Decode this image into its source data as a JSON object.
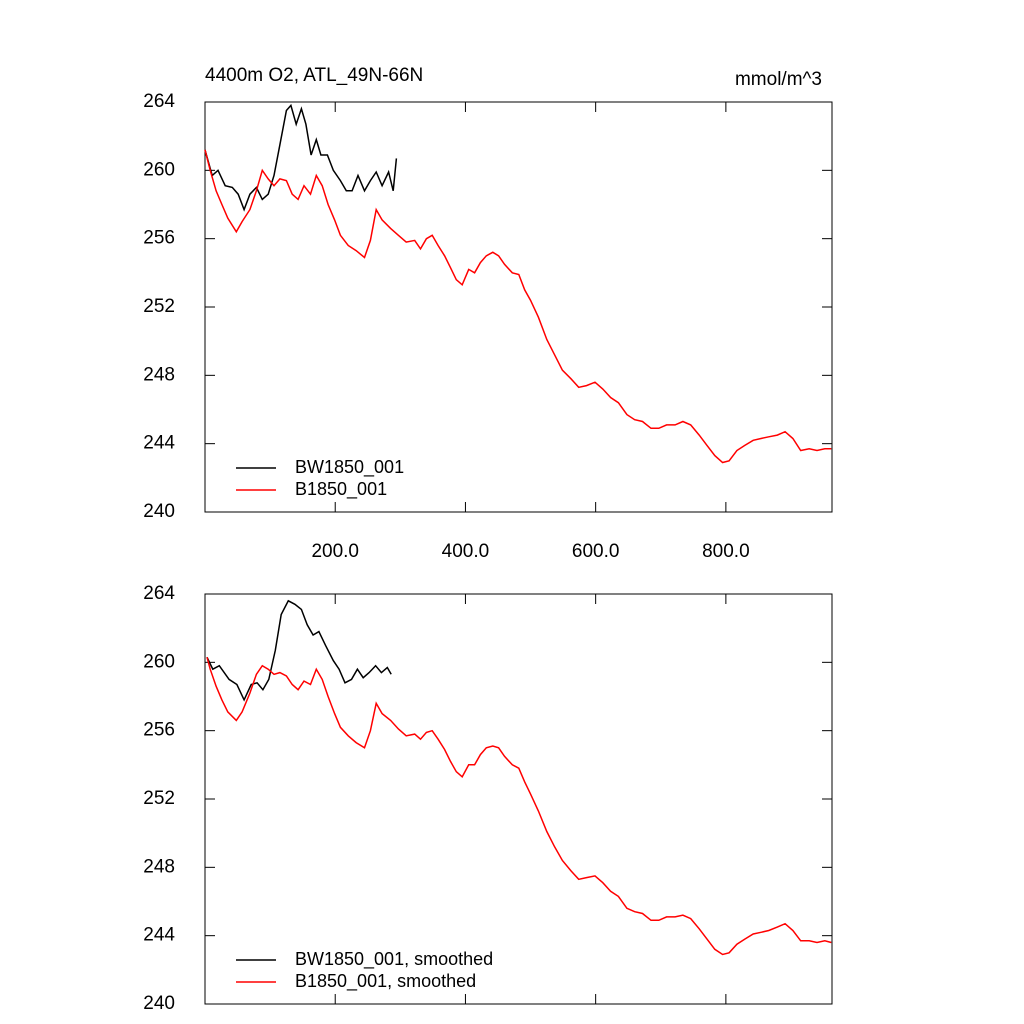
{
  "chart_data": [
    {
      "type": "line",
      "title": "4400m O2, ATL_49N-66N",
      "units_label": "mmol/m^3",
      "xlim": [
        0,
        963
      ],
      "ylim": [
        240,
        264
      ],
      "xticks": [
        {
          "value": 200,
          "label": "200.0"
        },
        {
          "value": 400,
          "label": "400.0"
        },
        {
          "value": 600,
          "label": "600.0"
        },
        {
          "value": 800,
          "label": "800.0"
        }
      ],
      "yticks": [
        240,
        244,
        248,
        252,
        256,
        260,
        264
      ],
      "legend": "lower-left",
      "series": [
        {
          "name": "BW1850_001",
          "color": "#000000",
          "x": [
            0,
            11,
            20,
            31,
            42,
            51,
            60,
            69,
            79,
            88,
            97,
            106,
            115,
            125,
            132,
            140,
            148,
            155,
            163,
            171,
            178,
            188,
            197,
            208,
            217,
            226,
            235,
            245,
            254,
            263,
            272,
            282,
            289,
            294
          ],
          "values": [
            261.2,
            259.7,
            260.0,
            259.1,
            259.0,
            258.6,
            257.7,
            258.6,
            259.0,
            258.3,
            258.6,
            259.7,
            261.5,
            263.5,
            263.8,
            262.7,
            263.6,
            262.7,
            260.9,
            261.8,
            260.9,
            260.9,
            260.0,
            259.4,
            258.8,
            258.8,
            259.7,
            258.8,
            259.4,
            259.9,
            259.1,
            259.9,
            258.8,
            260.7
          ]
        },
        {
          "name": "B1850_001",
          "color": "#ff0000",
          "x": [
            0,
            8,
            17,
            26,
            35,
            48,
            57,
            69,
            79,
            88,
            97,
            106,
            115,
            125,
            134,
            143,
            152,
            162,
            171,
            180,
            189,
            199,
            208,
            220,
            232,
            245,
            254,
            263,
            272,
            285,
            297,
            309,
            322,
            331,
            340,
            349,
            358,
            368,
            377,
            386,
            395,
            405,
            414,
            423,
            432,
            442,
            451,
            460,
            472,
            482,
            491,
            500,
            512,
            525,
            537,
            549,
            562,
            574,
            586,
            599,
            611,
            623,
            635,
            648,
            660,
            672,
            685,
            697,
            709,
            722,
            734,
            746,
            759,
            771,
            783,
            795,
            805,
            817,
            829,
            842,
            854,
            866,
            879,
            891,
            903,
            915,
            928,
            940,
            952,
            962
          ],
          "values": [
            261.2,
            260.0,
            258.8,
            258.0,
            257.2,
            256.4,
            257.0,
            257.7,
            258.8,
            260.0,
            259.5,
            259.1,
            259.5,
            259.4,
            258.6,
            258.3,
            259.1,
            258.6,
            259.7,
            259.1,
            258.0,
            257.1,
            256.2,
            255.6,
            255.3,
            254.9,
            255.9,
            257.7,
            257.1,
            256.6,
            256.2,
            255.8,
            255.9,
            255.4,
            256.0,
            256.2,
            255.6,
            255.0,
            254.3,
            253.6,
            253.3,
            254.2,
            254.0,
            254.6,
            255.0,
            255.2,
            255.0,
            254.5,
            254.0,
            253.9,
            253.0,
            252.4,
            251.4,
            250.1,
            249.2,
            248.3,
            247.8,
            247.3,
            247.4,
            247.6,
            247.2,
            246.7,
            246.4,
            245.7,
            245.4,
            245.3,
            244.9,
            244.9,
            245.1,
            245.1,
            245.3,
            245.1,
            244.5,
            243.9,
            243.3,
            242.9,
            243.0,
            243.6,
            243.9,
            244.2,
            244.3,
            244.4,
            244.5,
            244.7,
            244.3,
            243.6,
            243.7,
            243.6,
            243.7,
            243.7
          ]
        }
      ]
    },
    {
      "type": "line",
      "xlim": [
        0,
        963
      ],
      "ylim": [
        240,
        264
      ],
      "xticks": [
        200,
        400,
        600,
        800
      ],
      "yticks": [
        240,
        244,
        248,
        252,
        256,
        260,
        264
      ],
      "legend": "lower-left",
      "series": [
        {
          "name": "BW1850_001, smoothed",
          "color": "#000000",
          "x": [
            3,
            12,
            22,
            37,
            49,
            60,
            71,
            80,
            89,
            98,
            108,
            117,
            128,
            138,
            148,
            157,
            166,
            175,
            185,
            197,
            206,
            215,
            225,
            234,
            243,
            252,
            262,
            271,
            280,
            286
          ],
          "values": [
            260.3,
            259.6,
            259.8,
            259.0,
            258.7,
            257.8,
            258.7,
            258.8,
            258.4,
            259.0,
            260.7,
            262.8,
            263.6,
            263.4,
            263.1,
            262.2,
            261.6,
            261.8,
            261.0,
            260.1,
            259.6,
            258.8,
            259.0,
            259.6,
            259.1,
            259.4,
            259.8,
            259.4,
            259.7,
            259.3
          ]
        },
        {
          "name": "B1850_001, smoothed",
          "color": "#ff0000",
          "x": [
            3,
            8,
            17,
            26,
            35,
            48,
            57,
            69,
            79,
            88,
            97,
            106,
            115,
            125,
            134,
            143,
            152,
            162,
            171,
            180,
            189,
            199,
            208,
            220,
            232,
            245,
            254,
            263,
            272,
            285,
            297,
            309,
            322,
            331,
            340,
            349,
            358,
            368,
            377,
            386,
            395,
            405,
            414,
            423,
            432,
            442,
            451,
            460,
            472,
            482,
            491,
            500,
            512,
            525,
            537,
            549,
            562,
            574,
            586,
            599,
            611,
            623,
            635,
            648,
            660,
            672,
            685,
            697,
            709,
            722,
            734,
            746,
            759,
            771,
            783,
            795,
            805,
            817,
            829,
            842,
            854,
            866,
            879,
            891,
            903,
            915,
            928,
            940,
            952,
            962
          ],
          "values": [
            260.3,
            259.6,
            258.6,
            257.8,
            257.1,
            256.6,
            257.1,
            258.2,
            259.3,
            259.8,
            259.6,
            259.3,
            259.4,
            259.2,
            258.7,
            258.4,
            258.9,
            258.7,
            259.6,
            259.0,
            258.0,
            257.0,
            256.2,
            255.7,
            255.3,
            255.0,
            256.0,
            257.6,
            257.0,
            256.6,
            256.1,
            255.7,
            255.8,
            255.5,
            255.9,
            256.0,
            255.5,
            254.9,
            254.2,
            253.6,
            253.3,
            254.0,
            254.0,
            254.6,
            255.0,
            255.1,
            255.0,
            254.5,
            254.0,
            253.8,
            253.0,
            252.3,
            251.3,
            250.1,
            249.2,
            248.4,
            247.8,
            247.3,
            247.4,
            247.5,
            247.1,
            246.6,
            246.3,
            245.6,
            245.4,
            245.3,
            244.9,
            244.9,
            245.1,
            245.1,
            245.2,
            245.0,
            244.4,
            243.8,
            243.2,
            242.9,
            243.0,
            243.5,
            243.8,
            244.1,
            244.2,
            244.3,
            244.5,
            244.7,
            244.3,
            243.7,
            243.7,
            243.6,
            243.7,
            243.6
          ]
        }
      ]
    }
  ]
}
